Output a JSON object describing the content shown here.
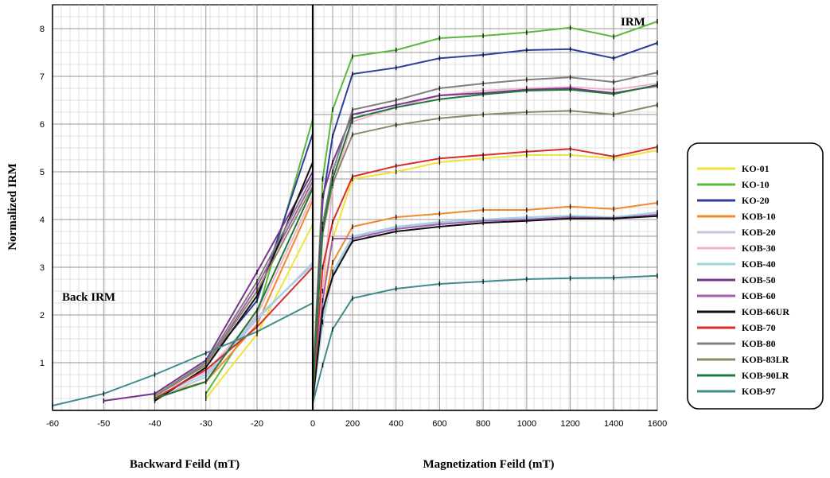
{
  "chart_data": {
    "type": "line",
    "ylabel": "Normalized IRM",
    "ylim": [
      0,
      8.5
    ],
    "y_ticks": [
      1,
      2,
      3,
      4,
      5,
      6,
      7,
      8
    ],
    "grid": true,
    "legend_position": "right",
    "annotations": {
      "left": "Back IRM",
      "right": "IRM"
    },
    "left_panel": {
      "xlabel": "Backward Feild (mT)",
      "x_ticks": [
        -60,
        -50,
        -40,
        -30,
        -20,
        0
      ],
      "x_tick_labels": [
        "-60",
        "-50",
        "-40",
        "-30",
        "-20",
        "0"
      ],
      "x": [
        -60,
        -50,
        -40,
        -30,
        -20,
        0
      ]
    },
    "right_panel": {
      "xlabel": "Magnetization Feild (mT)",
      "x_ticks": [
        0,
        100,
        200,
        400,
        600,
        800,
        1000,
        1200,
        1400,
        1600
      ],
      "x_tick_labels": [
        "0",
        "",
        "200",
        "400",
        "600",
        "800",
        "1000",
        "1200",
        "1400",
        "1600"
      ],
      "x": [
        0,
        50,
        100,
        200,
        400,
        600,
        800,
        1000,
        1200,
        1400,
        1600
      ]
    },
    "series": [
      {
        "name": "KO-01",
        "color": "#f2e33a",
        "back": [
          null,
          null,
          null,
          0.25,
          1.6,
          3.9
        ],
        "forward": [
          0.3,
          2.5,
          3.6,
          4.85,
          5.0,
          5.2,
          5.28,
          5.35,
          5.35,
          5.28,
          5.45
        ]
      },
      {
        "name": "KO-10",
        "color": "#5cb83c",
        "back": [
          null,
          null,
          null,
          0.35,
          2.0,
          6.1
        ],
        "forward": [
          0.5,
          4.85,
          6.3,
          7.42,
          7.55,
          7.8,
          7.85,
          7.92,
          8.02,
          7.83,
          8.15
        ]
      },
      {
        "name": "KO-20",
        "color": "#2d3f9a",
        "back": [
          null,
          null,
          0.3,
          1.0,
          2.3,
          5.8
        ],
        "forward": [
          0.4,
          4.4,
          5.75,
          7.05,
          7.18,
          7.38,
          7.45,
          7.55,
          7.57,
          7.38,
          7.7
        ]
      },
      {
        "name": "KOB-10",
        "color": "#f08a2c",
        "back": [
          null,
          null,
          0.3,
          0.6,
          1.8,
          4.4
        ],
        "forward": [
          0.3,
          2.0,
          3.1,
          3.85,
          4.05,
          4.12,
          4.2,
          4.2,
          4.27,
          4.22,
          4.35
        ]
      },
      {
        "name": "KOB-20",
        "color": "#c7c3e8",
        "back": [
          null,
          null,
          0.25,
          0.7,
          1.9,
          3.1
        ],
        "forward": [
          0.2,
          1.8,
          2.85,
          3.62,
          3.82,
          3.92,
          3.98,
          4.02,
          4.05,
          4.05,
          4.12
        ]
      },
      {
        "name": "KOB-30",
        "color": "#f2b2cf",
        "back": [
          null,
          null,
          0.35,
          0.8,
          2.0,
          4.5
        ],
        "forward": [
          0.3,
          2.5,
          4.7,
          6.05,
          6.35,
          6.6,
          6.7,
          6.75,
          6.78,
          6.72,
          6.85
        ]
      },
      {
        "name": "KOB-40",
        "color": "#9cd4e2",
        "back": [
          null,
          null,
          0.3,
          0.75,
          1.95,
          3.05
        ],
        "forward": [
          0.2,
          1.85,
          2.9,
          3.65,
          3.85,
          3.95,
          4.0,
          4.05,
          4.08,
          4.05,
          4.15
        ]
      },
      {
        "name": "KOB-50",
        "color": "#7a3590",
        "back": [
          null,
          0.2,
          0.35,
          1.05,
          2.9,
          5.0
        ],
        "forward": [
          0.4,
          4.5,
          5.2,
          6.2,
          6.4,
          6.6,
          6.65,
          6.72,
          6.75,
          6.65,
          6.8
        ]
      },
      {
        "name": "KOB-60",
        "color": "#a65eb0",
        "back": [
          null,
          null,
          0.3,
          0.95,
          2.6,
          4.8
        ],
        "forward": [
          0.35,
          2.3,
          3.6,
          3.6,
          3.8,
          3.9,
          3.97,
          4.0,
          4.05,
          4.03,
          4.1
        ]
      },
      {
        "name": "KOB-66UR",
        "color": "#111111",
        "back": [
          null,
          null,
          0.2,
          0.9,
          2.4,
          5.2
        ],
        "forward": [
          0.2,
          2.1,
          2.8,
          3.55,
          3.75,
          3.85,
          3.93,
          3.97,
          4.02,
          4.02,
          4.07
        ]
      },
      {
        "name": "KOB-70",
        "color": "#d92b2b",
        "back": [
          null,
          null,
          0.25,
          0.85,
          1.75,
          3.0
        ],
        "forward": [
          0.3,
          3.0,
          3.95,
          4.9,
          5.12,
          5.28,
          5.35,
          5.42,
          5.48,
          5.32,
          5.52
        ]
      },
      {
        "name": "KOB-80",
        "color": "#808080",
        "back": [
          null,
          null,
          0.3,
          1.0,
          2.7,
          4.9
        ],
        "forward": [
          0.35,
          3.9,
          5.0,
          6.3,
          6.5,
          6.75,
          6.85,
          6.93,
          6.98,
          6.88,
          7.08
        ]
      },
      {
        "name": "KOB-83LR",
        "color": "#8c8a64",
        "back": [
          null,
          null,
          0.3,
          0.95,
          2.5,
          4.7
        ],
        "forward": [
          0.35,
          3.7,
          4.75,
          5.78,
          5.98,
          6.12,
          6.2,
          6.25,
          6.28,
          6.2,
          6.4
        ]
      },
      {
        "name": "KOB-90LR",
        "color": "#1f7a3a",
        "back": [
          null,
          null,
          0.25,
          0.6,
          2.1,
          4.65
        ],
        "forward": [
          0.4,
          3.8,
          4.85,
          6.12,
          6.35,
          6.52,
          6.62,
          6.7,
          6.72,
          6.63,
          6.82
        ]
      },
      {
        "name": "KOB-97",
        "color": "#3e8c8c",
        "back": [
          0.1,
          0.35,
          0.75,
          1.2,
          1.65,
          2.25
        ],
        "forward": [
          0.15,
          0.95,
          1.7,
          2.35,
          2.55,
          2.65,
          2.7,
          2.75,
          2.77,
          2.78,
          2.82
        ]
      }
    ]
  }
}
